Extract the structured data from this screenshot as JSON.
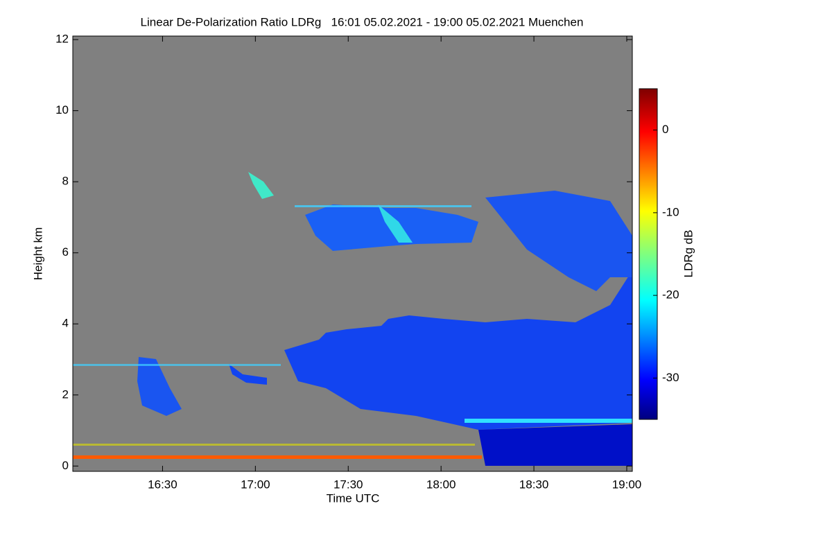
{
  "chart_data": {
    "type": "heatmap",
    "title": "Linear De-Polarization Ratio LDRg   16:01 05.02.2021 - 19:00 05.02.2021 Muenchen",
    "x_label": "Time UTC",
    "y_label": "Height km",
    "colorbar_label": "LDRg dB",
    "xlim": [
      16.0167,
      19.03
    ],
    "xticks": [
      {
        "value": 16.5,
        "label": "16:30"
      },
      {
        "value": 17.0,
        "label": "17:00"
      },
      {
        "value": 17.5,
        "label": "17:30"
      },
      {
        "value": 18.0,
        "label": "18:00"
      },
      {
        "value": 18.5,
        "label": "18:30"
      },
      {
        "value": 19.0,
        "label": "19:00"
      }
    ],
    "ylim": [
      -0.15,
      12.1
    ],
    "yticks": [
      0,
      2,
      4,
      6,
      8,
      10,
      12
    ],
    "clim": [
      -35,
      5
    ],
    "cticks": [
      0,
      -10,
      -20,
      -30
    ]
  }
}
